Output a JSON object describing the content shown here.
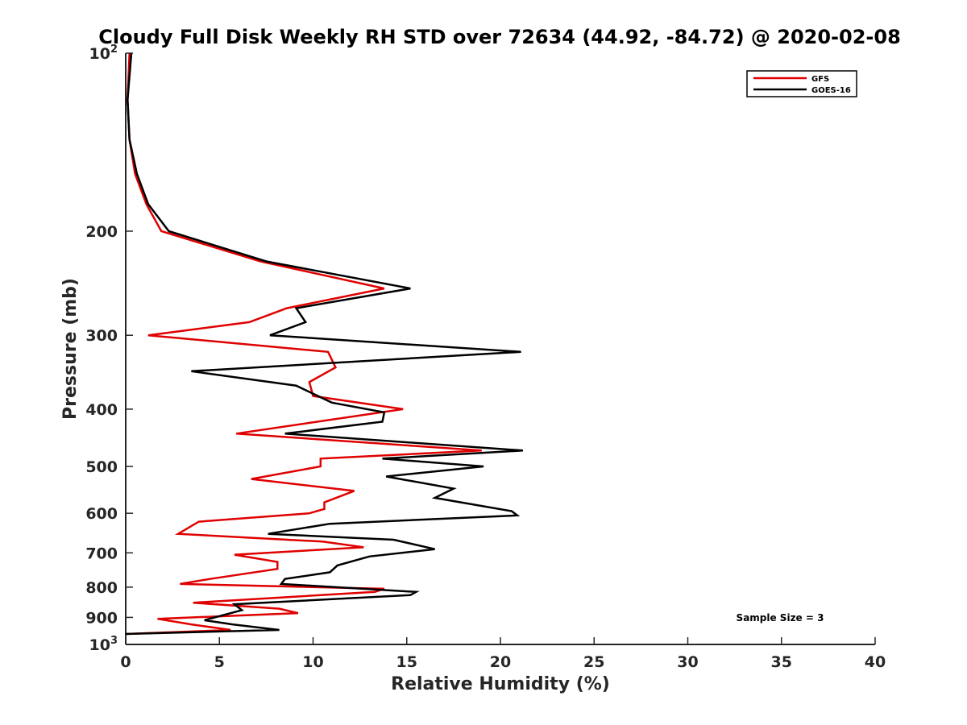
{
  "chart_data": {
    "type": "line",
    "title": "Cloudy Full Disk Weekly RH STD over 72634 (44.92, -84.72) @ 2020-02-08",
    "xlabel": "Relative Humidity (%)",
    "ylabel": "Pressure (mb)",
    "xlim": [
      0,
      40
    ],
    "ylim": [
      100,
      1000
    ],
    "y_scale": "log",
    "y_reversed": true,
    "grid": false,
    "legend_position": "top-right",
    "x_ticks": [
      0,
      5,
      10,
      15,
      20,
      25,
      30,
      35,
      40
    ],
    "y_ticks": [
      {
        "value": 100,
        "base": "10",
        "exp": "2"
      },
      {
        "value": 200,
        "base": "200",
        "exp": ""
      },
      {
        "value": 300,
        "base": "300",
        "exp": ""
      },
      {
        "value": 400,
        "base": "400",
        "exp": ""
      },
      {
        "value": 500,
        "base": "500",
        "exp": ""
      },
      {
        "value": 600,
        "base": "600",
        "exp": ""
      },
      {
        "value": 700,
        "base": "700",
        "exp": ""
      },
      {
        "value": 800,
        "base": "800",
        "exp": ""
      },
      {
        "value": 900,
        "base": "900",
        "exp": ""
      },
      {
        "value": 1000,
        "base": "10",
        "exp": "3"
      }
    ],
    "series": [
      {
        "name": "GFS",
        "color": "#e00000",
        "points": [
          [
            0.2,
            100
          ],
          [
            0.1,
            120
          ],
          [
            0.2,
            140
          ],
          [
            0.5,
            160
          ],
          [
            1.1,
            180
          ],
          [
            1.9,
            200
          ],
          [
            7.2,
            225
          ],
          [
            13.8,
            250
          ],
          [
            8.6,
            270
          ],
          [
            6.6,
            285
          ],
          [
            1.2,
            300
          ],
          [
            10.8,
            320
          ],
          [
            11.2,
            340
          ],
          [
            9.8,
            360
          ],
          [
            10.0,
            380
          ],
          [
            14.8,
            400
          ],
          [
            5.9,
            440
          ],
          [
            19.0,
            470
          ],
          [
            10.4,
            485
          ],
          [
            10.4,
            500
          ],
          [
            6.7,
            525
          ],
          [
            12.2,
            550
          ],
          [
            10.6,
            575
          ],
          [
            10.6,
            590
          ],
          [
            9.8,
            600
          ],
          [
            3.9,
            620
          ],
          [
            2.8,
            650
          ],
          [
            10.5,
            670
          ],
          [
            12.7,
            685
          ],
          [
            5.8,
            705
          ],
          [
            8.1,
            725
          ],
          [
            8.1,
            745
          ],
          [
            4.5,
            775
          ],
          [
            2.9,
            790
          ],
          [
            13.8,
            805
          ],
          [
            13.3,
            815
          ],
          [
            3.6,
            850
          ],
          [
            8.2,
            870
          ],
          [
            9.2,
            885
          ],
          [
            1.7,
            905
          ],
          [
            3.5,
            925
          ],
          [
            5.6,
            945
          ],
          [
            0.0,
            960
          ]
        ]
      },
      {
        "name": "GOES-16",
        "color": "#000000",
        "points": [
          [
            0.3,
            100
          ],
          [
            0.1,
            120
          ],
          [
            0.2,
            140
          ],
          [
            0.6,
            160
          ],
          [
            1.2,
            180
          ],
          [
            2.3,
            200
          ],
          [
            7.5,
            225
          ],
          [
            15.2,
            250
          ],
          [
            9.1,
            270
          ],
          [
            9.6,
            285
          ],
          [
            7.7,
            300
          ],
          [
            21.1,
            320
          ],
          [
            3.5,
            345
          ],
          [
            9.1,
            365
          ],
          [
            11.0,
            390
          ],
          [
            13.8,
            405
          ],
          [
            13.7,
            420
          ],
          [
            8.5,
            440
          ],
          [
            21.2,
            470
          ],
          [
            13.7,
            485
          ],
          [
            19.1,
            500
          ],
          [
            13.9,
            520
          ],
          [
            17.5,
            545
          ],
          [
            16.5,
            565
          ],
          [
            20.6,
            595
          ],
          [
            20.9,
            605
          ],
          [
            10.9,
            625
          ],
          [
            7.6,
            650
          ],
          [
            14.3,
            665
          ],
          [
            16.5,
            690
          ],
          [
            13.0,
            710
          ],
          [
            11.3,
            735
          ],
          [
            10.9,
            755
          ],
          [
            8.5,
            775
          ],
          [
            8.3,
            790
          ],
          [
            15.5,
            815
          ],
          [
            15.2,
            825
          ],
          [
            5.8,
            855
          ],
          [
            6.2,
            875
          ],
          [
            4.2,
            910
          ],
          [
            5.7,
            925
          ],
          [
            8.2,
            945
          ],
          [
            0.0,
            960
          ]
        ]
      }
    ],
    "annotation": "Sample Size = 3"
  }
}
